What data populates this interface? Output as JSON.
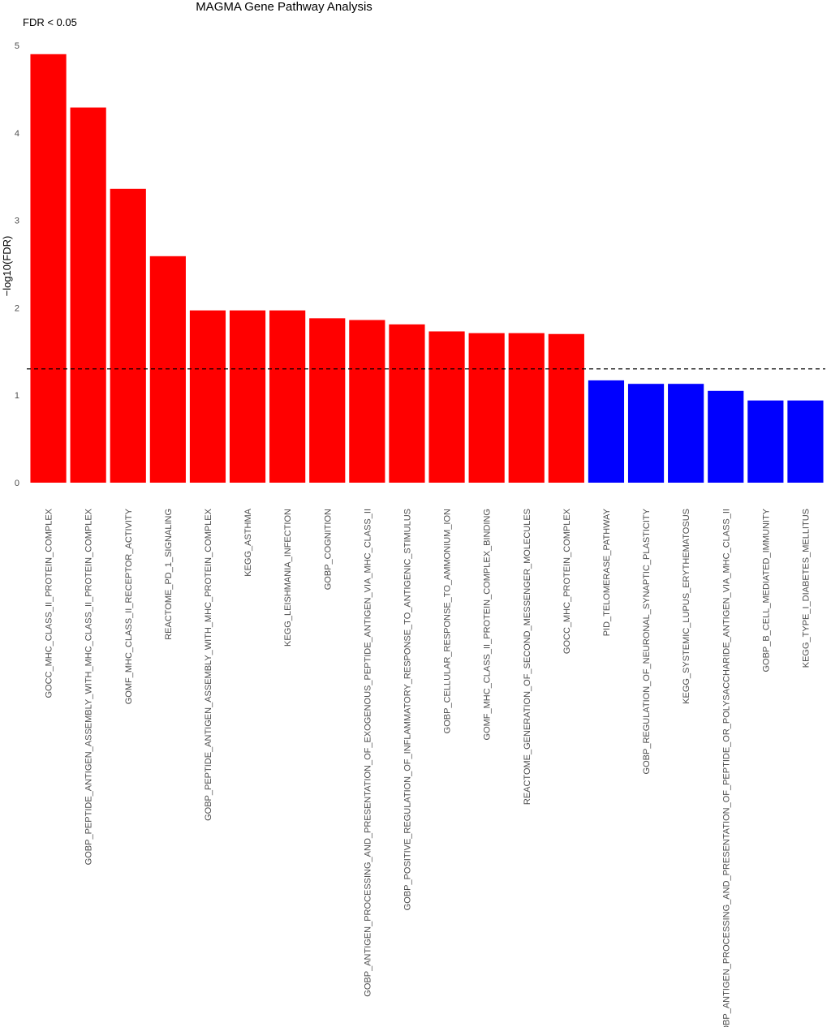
{
  "chart_data": {
    "type": "bar",
    "title": "MAGMA Gene Pathway Analysis",
    "legend_text": "FDR <  0.05",
    "xlabel": "",
    "ylabel": "−log10(FDR)",
    "ylim": [
      0,
      5
    ],
    "yticks": [
      "0",
      "1",
      "2",
      "3",
      "4",
      "5"
    ],
    "threshold": 1.30103,
    "threshold_style": "dashed",
    "grid": false,
    "colors": {
      "significant": "#ff0000",
      "not_significant": "#0000ff",
      "threshold_line": "#000000"
    },
    "categories": [
      "GOCC_MHC_CLASS_II_PROTEIN_COMPLEX",
      "GOBP_PEPTIDE_ANTIGEN_ASSEMBLY_WITH_MHC_CLASS_II_PROTEIN_COMPLEX",
      "GOMF_MHC_CLASS_II_RECEPTOR_ACTIVITY",
      "REACTOME_PD_1_SIGNALING",
      "GOBP_PEPTIDE_ANTIGEN_ASSEMBLY_WITH_MHC_PROTEIN_COMPLEX",
      "KEGG_ASTHMA",
      "KEGG_LEISHMANIA_INFECTION",
      "GOBP_COGNITION",
      "GOBP_ANTIGEN_PROCESSING_AND_PRESENTATION_OF_EXOGENOUS_PEPTIDE_ANTIGEN_VIA_MHC_CLASS_II",
      "GOBP_POSITIVE_REGULATION_OF_INFLAMMATORY_RESPONSE_TO_ANTIGENIC_STIMULUS",
      "GOBP_CELLULAR_RESPONSE_TO_AMMONIUM_ION",
      "GOMF_MHC_CLASS_II_PROTEIN_COMPLEX_BINDING",
      "REACTOME_GENERATION_OF_SECOND_MESSENGER_MOLECULES",
      "GOCC_MHC_PROTEIN_COMPLEX",
      "PID_TELOMERASE_PATHWAY",
      "GOBP_REGULATION_OF_NEURONAL_SYNAPTIC_PLASTICITY",
      "KEGG_SYSTEMIC_LUPUS_ERYTHEMATOSUS",
      "GOBP_ANTIGEN_PROCESSING_AND_PRESENTATION_OF_PEPTIDE_OR_POLYSACCHARIDE_ANTIGEN_VIA_MHC_CLASS_II",
      "GOBP_B_CELL_MEDIATED_IMMUNITY",
      "KEGG_TYPE_I_DIABETES_MELLITUS"
    ],
    "values": [
      4.9,
      4.29,
      3.36,
      2.59,
      1.97,
      1.97,
      1.97,
      1.88,
      1.86,
      1.81,
      1.73,
      1.71,
      1.71,
      1.7,
      1.17,
      1.13,
      1.13,
      1.05,
      0.94,
      0.94
    ]
  }
}
